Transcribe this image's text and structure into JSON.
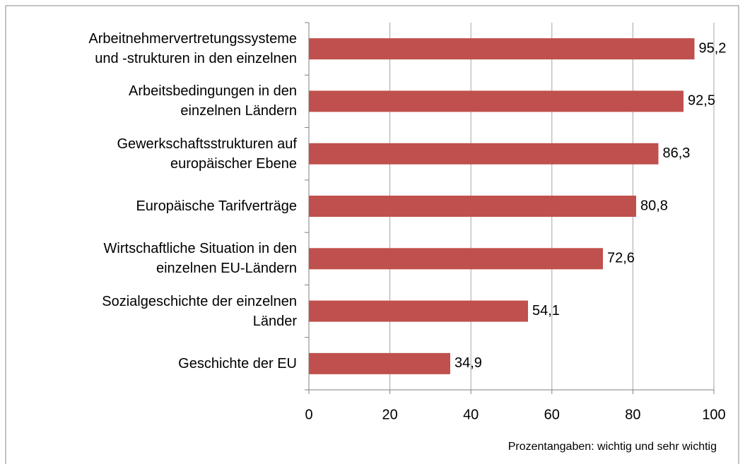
{
  "chart_data": {
    "type": "bar",
    "orientation": "horizontal",
    "categories": [
      "Arbeitnehmervertretungssysteme\nund -strukturen in den einzelnen",
      "Arbeitsbedingungen in den\neinzelnen Ländern",
      "Gewerkschaftsstrukturen auf\neuropäischer Ebene",
      "Europäische Tarifverträge",
      "Wirtschaftliche Situation in den\neinzelnen EU-Ländern",
      "Sozialgeschichte der einzelnen\nLänder",
      "Geschichte der EU"
    ],
    "values": [
      95.2,
      92.5,
      86.3,
      80.8,
      72.6,
      54.1,
      34.9
    ],
    "value_labels": [
      "95,2",
      "92,5",
      "86,3",
      "80,8",
      "72,6",
      "54,1",
      "34,9"
    ],
    "color": "#c0504d",
    "xlim": [
      0,
      100
    ],
    "xticks": [
      0,
      20,
      40,
      60,
      80,
      100
    ],
    "grid": true,
    "annotation": "Prozentangaben: wichtig und sehr wichtig"
  }
}
